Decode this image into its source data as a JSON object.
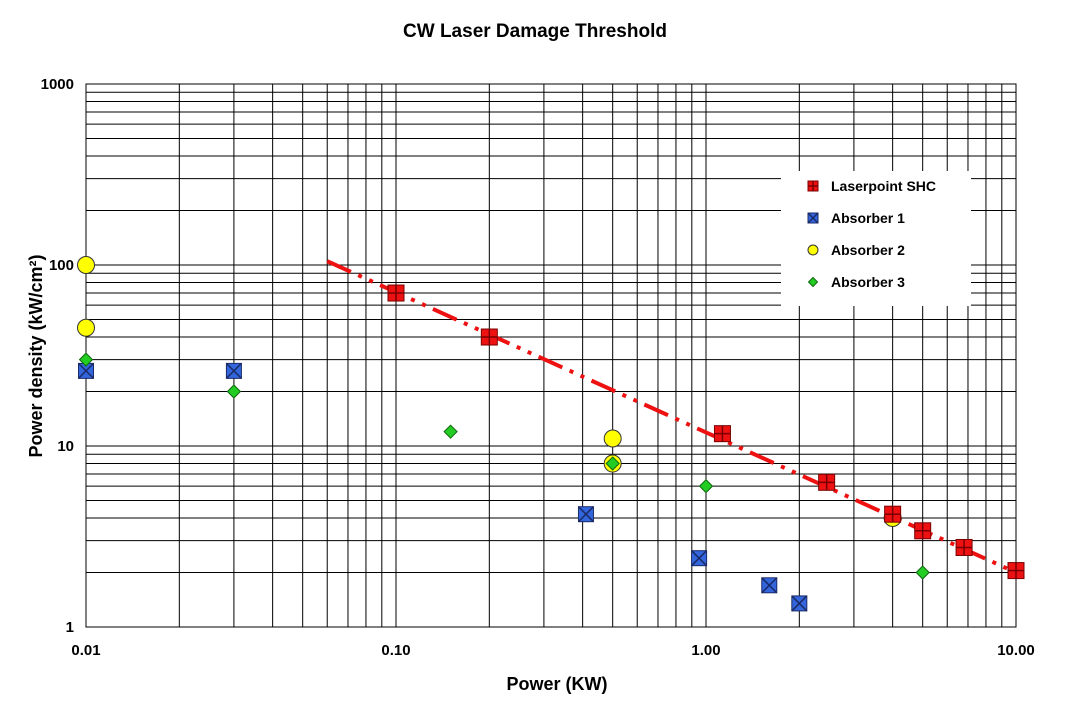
{
  "chart_data": {
    "type": "scatter",
    "title": "CW Laser Damage Threshold",
    "xlabel": "Power  (KW)",
    "ylabel": "Power density (kW/cm²)",
    "x_scale": "log",
    "y_scale": "log",
    "xlim": [
      0.01,
      10
    ],
    "ylim": [
      1,
      1000
    ],
    "grid": true,
    "legend_position": "top-right",
    "x_tick_labels": [
      {
        "value": 0.01,
        "label": "0.01"
      },
      {
        "value": 0.1,
        "label": "0.10"
      },
      {
        "value": 1,
        "label": "1.00"
      },
      {
        "value": 10,
        "label": "10.00"
      }
    ],
    "y_tick_labels": [
      {
        "value": 1,
        "label": "1"
      },
      {
        "value": 10,
        "label": "10"
      },
      {
        "value": 100,
        "label": "100"
      },
      {
        "value": 1000,
        "label": "1000"
      }
    ],
    "series": [
      {
        "name": "Laserpoint SHC",
        "marker": "square-plus",
        "color": "#ee1111",
        "x": [
          0.1,
          0.2,
          1.13,
          2.45,
          4.0,
          5.0,
          6.8,
          10.0
        ],
        "y": [
          70,
          40,
          11.7,
          6.3,
          4.2,
          3.4,
          2.75,
          2.05
        ]
      },
      {
        "name": "Absorber 1",
        "marker": "square-x",
        "color": "#3366dd",
        "x": [
          0.01,
          0.03,
          0.41,
          0.95,
          1.6,
          2.0
        ],
        "y": [
          26,
          26,
          4.2,
          2.4,
          1.7,
          1.35
        ]
      },
      {
        "name": "Absorber 2",
        "marker": "circle",
        "color": "#ffff00",
        "x": [
          0.01,
          0.01,
          0.5,
          0.5,
          4.0
        ],
        "y": [
          100,
          45,
          11,
          8,
          4
        ]
      },
      {
        "name": "Absorber 3",
        "marker": "diamond",
        "color": "#22cc22",
        "x": [
          0.01,
          0.03,
          0.15,
          0.5,
          1.0,
          5.0
        ],
        "y": [
          30,
          20,
          12,
          8,
          6,
          2
        ]
      }
    ],
    "trendline": {
      "series": "Laserpoint SHC",
      "style": "dash-dot",
      "color": "#ee1111",
      "x": [
        0.06,
        10.0
      ],
      "y": [
        105,
        2.0
      ]
    }
  }
}
